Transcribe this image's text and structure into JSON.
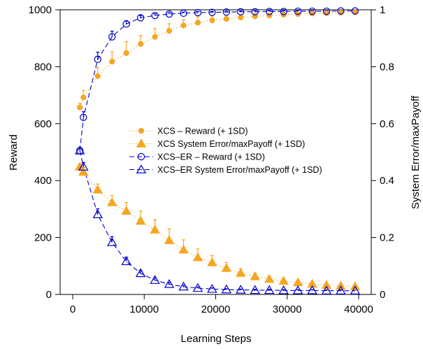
{
  "colors": {
    "orange": "#f5a623",
    "blue": "#0000cc",
    "axis": "#000000"
  },
  "chart_data": {
    "type": "scatter",
    "xlabel": "Learning Steps",
    "ylabel": "Reward",
    "y2label": "System Error/maxPayoff",
    "xlim": [
      0,
      40000
    ],
    "ylim": [
      0,
      1000
    ],
    "y2lim": [
      0,
      1
    ],
    "x_ticks": [
      "0",
      "10000",
      "20000",
      "30000",
      "40000"
    ],
    "y_ticks": [
      "0",
      "200",
      "400",
      "600",
      "800",
      "1000"
    ],
    "y2_ticks": [
      "0",
      "0.2",
      "0.4",
      "0.6",
      "0.8",
      "1"
    ],
    "legend_position": "center-right",
    "series": [
      {
        "name": "XCS – Reward (+ 1SD)",
        "axis": "left",
        "marker": "dot",
        "line": "dotted",
        "color": "#f5a623",
        "x": [
          1000,
          1500,
          3500,
          5500,
          7500,
          9500,
          11500,
          13500,
          15500,
          17500,
          19500,
          21500,
          23500,
          25500,
          27500,
          29500,
          31500,
          33500,
          35500,
          37500,
          39500
        ],
        "y": [
          657,
          692,
          767,
          818,
          848,
          880,
          905,
          926,
          945,
          955,
          963,
          968,
          973,
          977,
          980,
          983,
          985,
          987,
          988,
          990,
          991
        ],
        "sd": [
          15,
          25,
          30,
          35,
          40,
          30,
          30,
          25,
          20,
          20,
          15,
          12,
          10,
          10,
          8,
          8,
          8,
          6,
          6,
          6,
          6
        ]
      },
      {
        "name": "XCS System Error/maxPayoff (+ 1SD)",
        "axis": "right",
        "marker": "filled-triangle",
        "line": "dotted",
        "color": "#f5a623",
        "x": [
          1000,
          1500,
          3500,
          5500,
          7500,
          9500,
          11500,
          13500,
          15500,
          17500,
          19500,
          21500,
          23500,
          25500,
          27500,
          29500,
          31500,
          33500,
          35500,
          37500,
          39500
        ],
        "y": [
          0.448,
          0.43,
          0.368,
          0.323,
          0.293,
          0.258,
          0.227,
          0.19,
          0.157,
          0.13,
          0.112,
          0.092,
          0.075,
          0.063,
          0.054,
          0.047,
          0.042,
          0.037,
          0.033,
          0.03,
          0.028
        ],
        "sd": [
          0.01,
          0.015,
          0.02,
          0.025,
          0.03,
          0.035,
          0.035,
          0.04,
          0.035,
          0.03,
          0.025,
          0.02,
          0.015,
          0.012,
          0.01,
          0.01,
          0.008,
          0.008,
          0.006,
          0.006,
          0.005
        ]
      },
      {
        "name": "XCS–ER – Reward (+ 1SD)",
        "axis": "left",
        "marker": "circle",
        "line": "dashed",
        "color": "#0000cc",
        "x": [
          1000,
          1500,
          3500,
          5500,
          7500,
          9500,
          11500,
          13500,
          15500,
          17500,
          19500,
          21500,
          23500,
          25500,
          27500,
          29500,
          31500,
          33500,
          35500,
          37500,
          39500
        ],
        "y": [
          505,
          622,
          826,
          905,
          950,
          972,
          980,
          985,
          988,
          990,
          991,
          992,
          993,
          993,
          994,
          994,
          995,
          995,
          995,
          996,
          996
        ],
        "sd": [
          10,
          20,
          25,
          20,
          12,
          8,
          6,
          5,
          4,
          4,
          3,
          3,
          3,
          3,
          3,
          3,
          3,
          3,
          3,
          3,
          3
        ]
      },
      {
        "name": "XCS–ER System Error/maxPayoff (+ 1SD)",
        "axis": "right",
        "marker": "triangle",
        "line": "dashed",
        "color": "#0000cc",
        "x": [
          1000,
          1500,
          3500,
          5500,
          7500,
          9500,
          11500,
          13500,
          15500,
          17500,
          19500,
          21500,
          23500,
          25500,
          27500,
          29500,
          31500,
          33500,
          35500,
          37500,
          39500
        ],
        "y": [
          0.505,
          0.448,
          0.281,
          0.183,
          0.116,
          0.074,
          0.05,
          0.036,
          0.027,
          0.022,
          0.019,
          0.017,
          0.016,
          0.015,
          0.015,
          0.014,
          0.014,
          0.014,
          0.013,
          0.013,
          0.013
        ],
        "sd": [
          0.01,
          0.015,
          0.02,
          0.02,
          0.015,
          0.01,
          0.008,
          0.006,
          0.005,
          0.004,
          0.004,
          0.003,
          0.003,
          0.003,
          0.003,
          0.003,
          0.003,
          0.003,
          0.003,
          0.003,
          0.003
        ]
      }
    ]
  }
}
